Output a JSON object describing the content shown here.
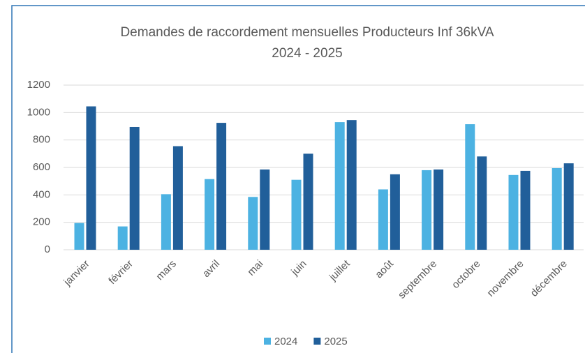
{
  "chart_data": {
    "type": "bar",
    "title": "Demandes de raccordement mensuelles Producteurs Inf 36kVA",
    "subtitle": "2024 - 2025",
    "categories": [
      "janvier",
      "février",
      "mars",
      "avril",
      "mai",
      "juin",
      "juillet",
      "août",
      "septembre",
      "octobre",
      "novembre",
      "décembre"
    ],
    "series": [
      {
        "name": "2024",
        "color": "#4cb2e2",
        "values": [
          195,
          170,
          405,
          515,
          385,
          510,
          930,
          440,
          580,
          915,
          545,
          595
        ]
      },
      {
        "name": "2025",
        "color": "#215f9a",
        "values": [
          1045,
          895,
          755,
          925,
          585,
          700,
          945,
          550,
          585,
          680,
          575,
          630
        ]
      }
    ],
    "ylim": [
      0,
      1200
    ],
    "yticks": [
      0,
      200,
      400,
      600,
      800,
      1000,
      1200
    ],
    "grid": true,
    "legend": "bottom"
  }
}
